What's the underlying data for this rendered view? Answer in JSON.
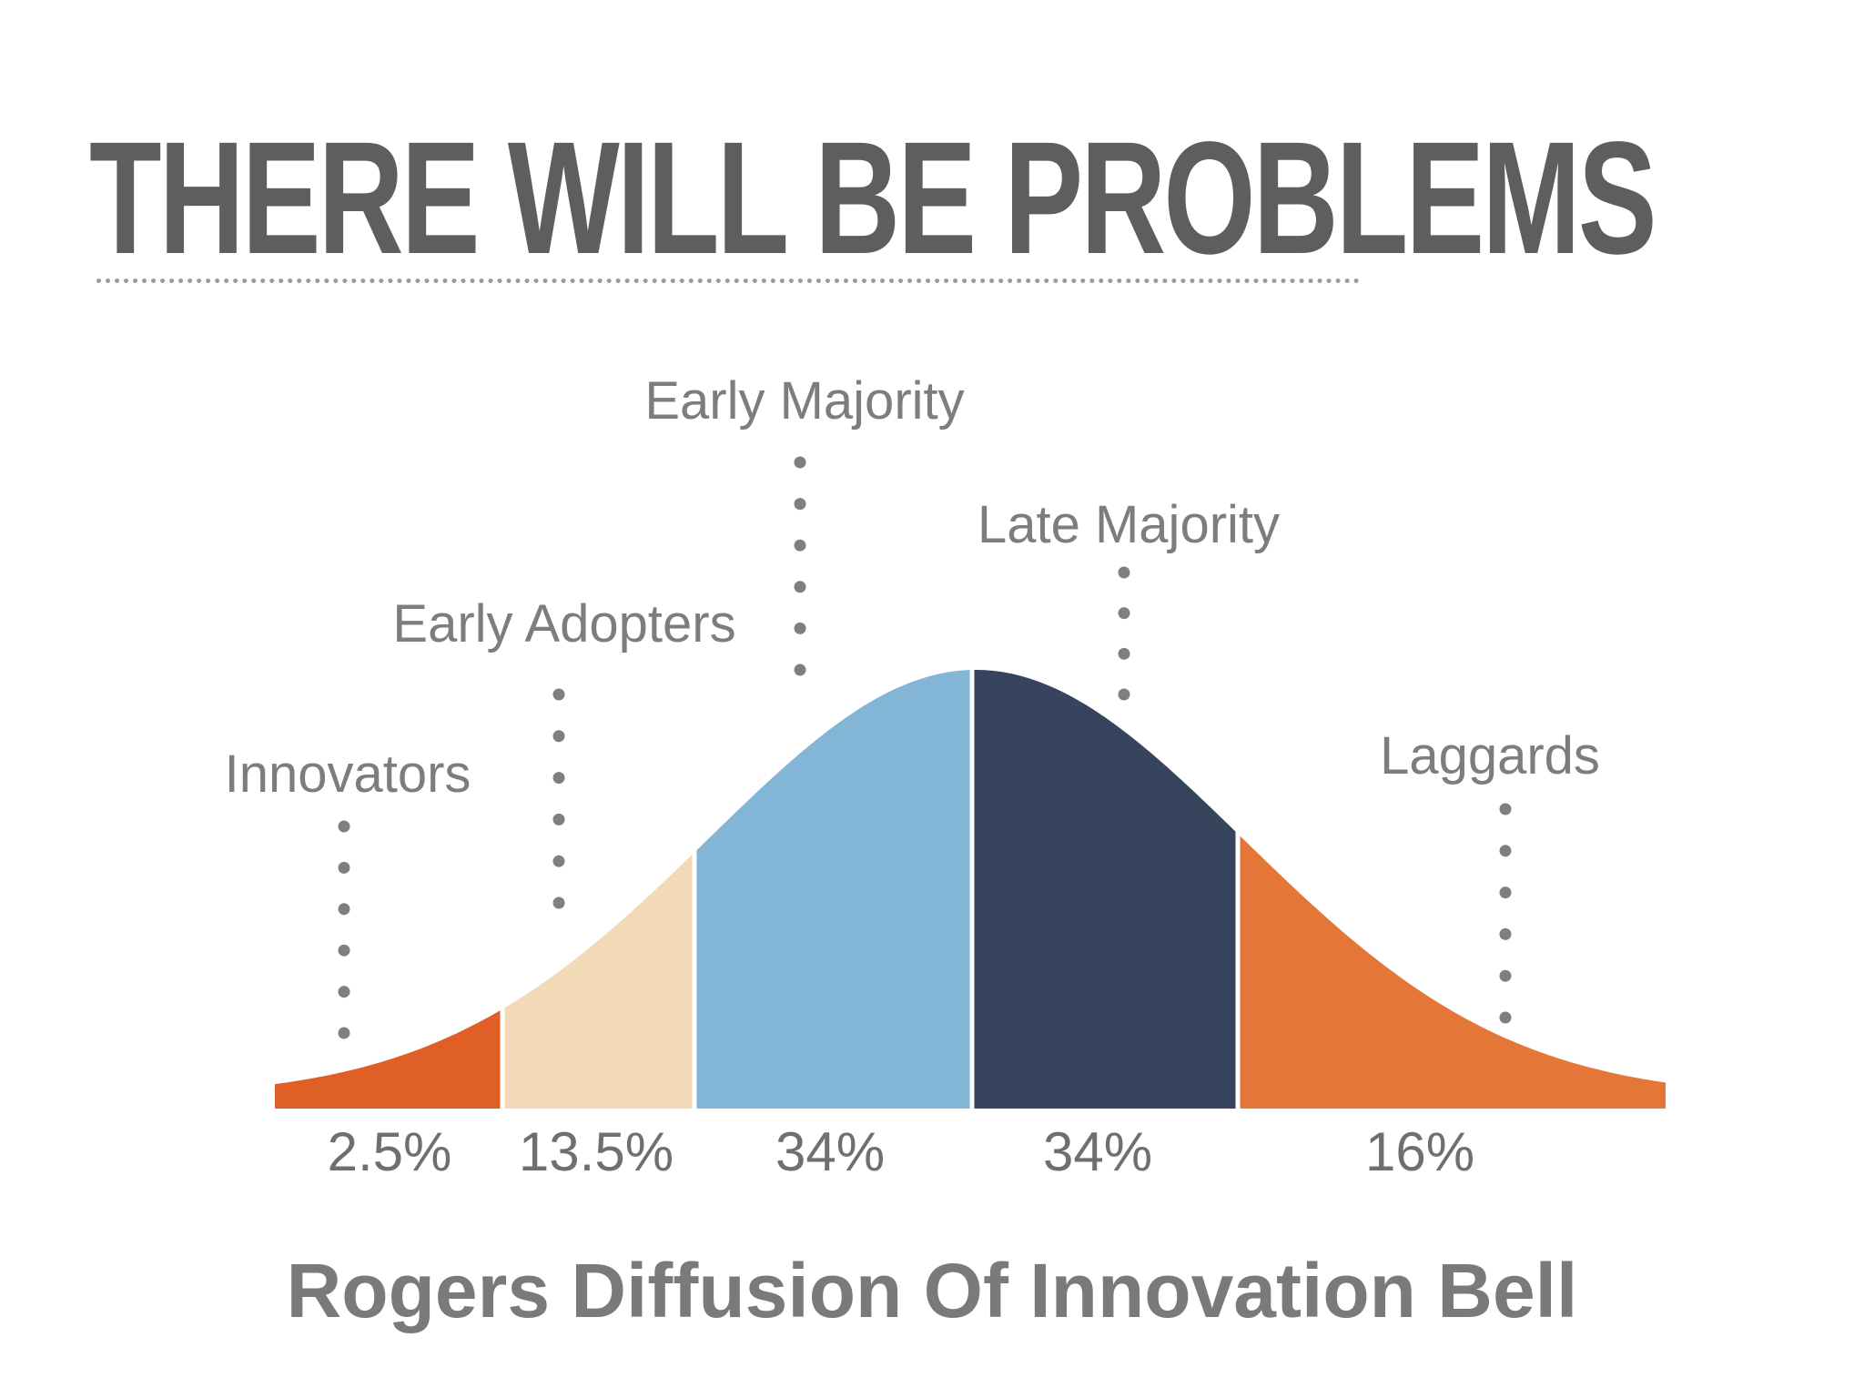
{
  "headline": "THERE WILL BE PROBLEMS",
  "chart_data": {
    "type": "area",
    "title": "Rogers Diffusion Of Innovation Bell",
    "segments": [
      {
        "name": "Innovators",
        "percent_label": "2.5%",
        "value": 2.5,
        "color": "#df5f27"
      },
      {
        "name": "Early Adopters",
        "percent_label": "13.5%",
        "value": 13.5,
        "color": "#f2d9b7"
      },
      {
        "name": "Early Majority",
        "percent_label": "34%",
        "value": 34,
        "color": "#83b5d7"
      },
      {
        "name": "Late Majority",
        "percent_label": "34%",
        "value": 34,
        "color": "#36445d"
      },
      {
        "name": "Laggards",
        "percent_label": "16%",
        "value": 16,
        "color": "#e47738"
      }
    ]
  }
}
